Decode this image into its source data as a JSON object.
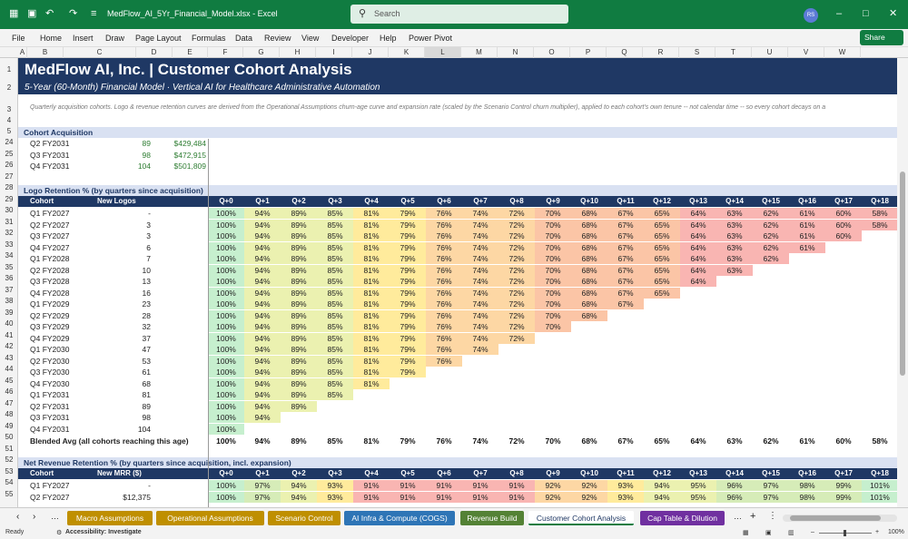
{
  "titlebar": {
    "filename": "MedFlow_AI_5Yr_Financial_Model.xlsx  -  Excel",
    "search_placeholder": "Search",
    "avatar_initials": "RS"
  },
  "menu": [
    "File",
    "Home",
    "Insert",
    "Draw",
    "Page Layout",
    "Formulas",
    "Data",
    "Review",
    "View",
    "Developer",
    "Help",
    "Power Pivot"
  ],
  "share_label": "Share",
  "columns": [
    "A",
    "B",
    "C",
    "D",
    "E",
    "F",
    "G",
    "H",
    "I",
    "J",
    "K",
    "L",
    "M",
    "N",
    "O",
    "P",
    "Q",
    "R",
    "S",
    "T",
    "U",
    "V",
    "W"
  ],
  "sheet": {
    "title": "MedFlow AI, Inc.  |  Customer Cohort Analysis",
    "subtitle": "5-Year (60-Month) Financial Model  ·  Vertical AI for Healthcare Administrative Automation",
    "note": "Quarterly acquisition cohorts. Logo & revenue retention curves are derived from the Operational Assumptions churn-age curve and expansion rate (scaled by the Scenario Control churn multiplier), applied to each cohort's own tenure -- not calendar time -- so every cohort decays on a",
    "acq_section": "Cohort Acquisition",
    "acq_rows": [
      {
        "row": "24",
        "cohort": "Q2 FY2031",
        "logos": "89",
        "mrr": "$429,484"
      },
      {
        "row": "25",
        "cohort": "Q3 FY2031",
        "logos": "98",
        "mrr": "$472,915"
      },
      {
        "row": "26",
        "cohort": "Q4 FY2031",
        "logos": "104",
        "mrr": "$501,809"
      }
    ],
    "logo_section": "Logo Retention % (by quarters since acquisition)",
    "logo_header": {
      "cohort": "Cohort",
      "new": "New Logos"
    },
    "quarters": [
      "Q+0",
      "Q+1",
      "Q+2",
      "Q+3",
      "Q+4",
      "Q+5",
      "Q+6",
      "Q+7",
      "Q+8",
      "Q+9",
      "Q+10",
      "Q+11",
      "Q+12",
      "Q+13",
      "Q+14",
      "Q+15",
      "Q+16",
      "Q+17",
      "Q+18"
    ],
    "logo_curve": [
      "100%",
      "94%",
      "89%",
      "85%",
      "81%",
      "79%",
      "76%",
      "74%",
      "72%",
      "70%",
      "68%",
      "67%",
      "65%",
      "64%",
      "63%",
      "62%",
      "61%",
      "60%",
      "58%"
    ],
    "logo_rows": [
      {
        "row": "30",
        "cohort": "Q1 FY2027",
        "new": "-",
        "n": 19
      },
      {
        "row": "31",
        "cohort": "Q2 FY2027",
        "new": "3",
        "n": 19
      },
      {
        "row": "32",
        "cohort": "Q3 FY2027",
        "new": "3",
        "n": 18
      },
      {
        "row": "33",
        "cohort": "Q4 FY2027",
        "new": "6",
        "n": 17
      },
      {
        "row": "34",
        "cohort": "Q1 FY2028",
        "new": "7",
        "n": 16
      },
      {
        "row": "35",
        "cohort": "Q2 FY2028",
        "new": "10",
        "n": 15
      },
      {
        "row": "36",
        "cohort": "Q3 FY2028",
        "new": "13",
        "n": 14
      },
      {
        "row": "37",
        "cohort": "Q4 FY2028",
        "new": "16",
        "n": 13
      },
      {
        "row": "38",
        "cohort": "Q1 FY2029",
        "new": "23",
        "n": 12
      },
      {
        "row": "39",
        "cohort": "Q2 FY2029",
        "new": "28",
        "n": 11
      },
      {
        "row": "40",
        "cohort": "Q3 FY2029",
        "new": "32",
        "n": 10
      },
      {
        "row": "41",
        "cohort": "Q4 FY2029",
        "new": "37",
        "n": 9
      },
      {
        "row": "42",
        "cohort": "Q1 FY2030",
        "new": "47",
        "n": 8
      },
      {
        "row": "43",
        "cohort": "Q2 FY2030",
        "new": "53",
        "n": 7
      },
      {
        "row": "44",
        "cohort": "Q3 FY2030",
        "new": "61",
        "n": 6
      },
      {
        "row": "45",
        "cohort": "Q4 FY2030",
        "new": "68",
        "n": 5
      },
      {
        "row": "46",
        "cohort": "Q1 FY2031",
        "new": "81",
        "n": 4
      },
      {
        "row": "47",
        "cohort": "Q2 FY2031",
        "new": "89",
        "n": 3
      },
      {
        "row": "48",
        "cohort": "Q3 FY2031",
        "new": "98",
        "n": 2
      },
      {
        "row": "49",
        "cohort": "Q4 FY2031",
        "new": "104",
        "n": 1
      }
    ],
    "blended_label": "Blended Avg (all cohorts reaching this age)",
    "blended": [
      "100%",
      "94%",
      "89%",
      "85%",
      "81%",
      "79%",
      "76%",
      "74%",
      "72%",
      "70%",
      "68%",
      "67%",
      "65%",
      "64%",
      "63%",
      "62%",
      "61%",
      "60%",
      "58%"
    ],
    "nrr_section": "Net Revenue Retention % (by quarters since acquisition, incl. expansion)",
    "nrr_header": {
      "cohort": "Cohort",
      "new": "New MRR ($)"
    },
    "nrr_curve": [
      "100%",
      "97%",
      "94%",
      "93%",
      "91%",
      "91%",
      "91%",
      "91%",
      "91%",
      "92%",
      "92%",
      "93%",
      "94%",
      "95%",
      "96%",
      "97%",
      "98%",
      "99%",
      "101%"
    ],
    "nrr_rows": [
      {
        "row": "54",
        "cohort": "Q1 FY2027",
        "new": "-"
      },
      {
        "row": "55",
        "cohort": "Q2 FY2027",
        "new": "$12,375"
      }
    ]
  },
  "rows_visible": [
    "1",
    "2",
    "3",
    "4",
    "5",
    "24",
    "25",
    "26",
    "27",
    "28",
    "29",
    "30",
    "31",
    "32",
    "33",
    "34",
    "35",
    "36",
    "37",
    "38",
    "39",
    "40",
    "41",
    "42",
    "43",
    "44",
    "45",
    "46",
    "47",
    "48",
    "49",
    "50",
    "51",
    "52",
    "53",
    "54",
    "55"
  ],
  "tabs": [
    {
      "label": "Macro Assumptions",
      "bg": "#bf8f00",
      "fg": "#ffffff",
      "active": false
    },
    {
      "label": "Operational Assumptions",
      "bg": "#bf8f00",
      "fg": "#ffffff",
      "active": false
    },
    {
      "label": "Scenario Control",
      "bg": "#bf8f00",
      "fg": "#ffffff",
      "active": false
    },
    {
      "label": "AI Infra & Compute (COGS)",
      "bg": "#2e75b6",
      "fg": "#ffffff",
      "active": false
    },
    {
      "label": "Revenue Build",
      "bg": "#548235",
      "fg": "#ffffff",
      "active": false
    },
    {
      "label": "Customer Cohort Analysis",
      "bg": "#ffffff",
      "fg": "#1f3864",
      "active": true
    },
    {
      "label": "Cap Table & Dilution",
      "bg": "#7030a0",
      "fg": "#ffffff",
      "active": false
    }
  ],
  "status": {
    "ready": "Ready",
    "accessibility": "Accessibility: Investigate",
    "zoom": "100%"
  },
  "colors": {
    "title_band": "#1f3864",
    "section_band": "#d9e1f2",
    "green_text": "#2e7d32"
  }
}
